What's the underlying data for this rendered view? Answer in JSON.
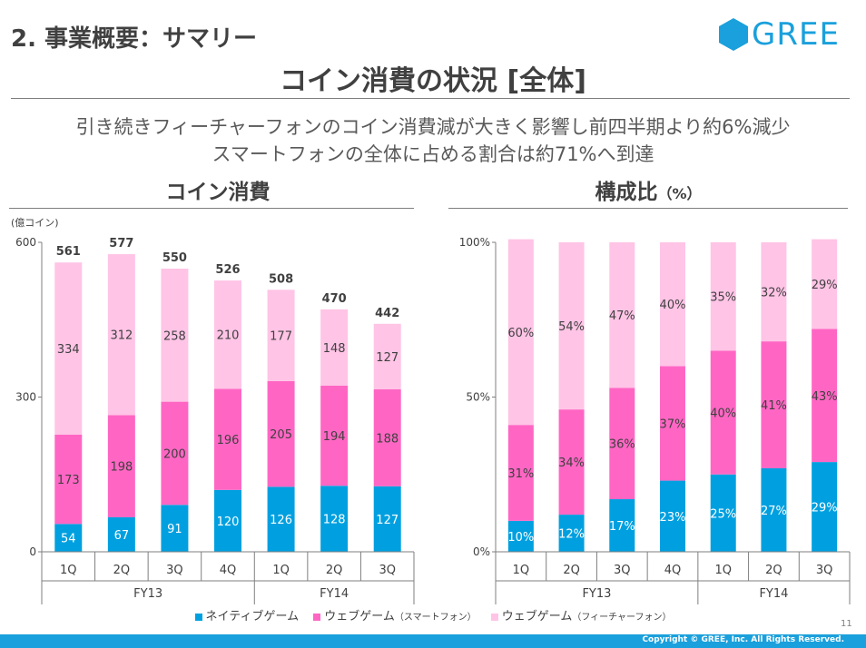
{
  "header": {
    "section_title": "2. 事業概要：サマリー",
    "main_title": "コイン消費の状況 [全体]",
    "logo_text": "GREE"
  },
  "subtitle": {
    "line1": "引き続きフィーチャーフォンのコイン消費減が大きく影響し前四半期より約6%減少",
    "line2": "スマートフォンの全体に占める割合は約71%へ到達"
  },
  "legend": {
    "items": [
      {
        "label": "ネイティブゲーム",
        "note": ""
      },
      {
        "label": "ウェブゲーム",
        "note": "（スマートフォン）"
      },
      {
        "label": "ウェブゲーム",
        "note": "（フィーチャーフォン）"
      }
    ]
  },
  "colors": {
    "native": "#00a0e0",
    "web_smartphone": "#ff66c4",
    "web_featurephone": "#ffc4e6",
    "brand": "#1aa0dc"
  },
  "chart_data": [
    {
      "type": "bar",
      "stacked": true,
      "title": "コイン消費",
      "ylabel": "(億コイン)",
      "ylim": [
        0,
        600
      ],
      "yticks": [
        "0",
        "300",
        "600"
      ],
      "categories": [
        "1Q",
        "2Q",
        "3Q",
        "4Q",
        "1Q",
        "2Q",
        "3Q"
      ],
      "groups": [
        {
          "label": "FY13",
          "count": 4
        },
        {
          "label": "FY14",
          "count": 3
        }
      ],
      "series": [
        {
          "name": "ネイティブゲーム",
          "values": [
            54,
            67,
            91,
            120,
            126,
            128,
            127
          ]
        },
        {
          "name": "ウェブゲーム（スマートフォン）",
          "values": [
            173,
            198,
            200,
            196,
            205,
            194,
            188
          ]
        },
        {
          "name": "ウェブゲーム（フィーチャーフォン）",
          "values": [
            334,
            312,
            258,
            210,
            177,
            148,
            127
          ]
        }
      ],
      "totals": [
        561,
        577,
        550,
        526,
        508,
        470,
        442
      ]
    },
    {
      "type": "bar",
      "stacked": true,
      "title": "構成比",
      "title_unit": "（%）",
      "ylim": [
        0,
        100
      ],
      "yticks": [
        "0%",
        "50%",
        "100%"
      ],
      "categories": [
        "1Q",
        "2Q",
        "3Q",
        "4Q",
        "1Q",
        "2Q",
        "3Q"
      ],
      "groups": [
        {
          "label": "FY13",
          "count": 4
        },
        {
          "label": "FY14",
          "count": 3
        }
      ],
      "series": [
        {
          "name": "ネイティブゲーム",
          "values": [
            10,
            12,
            17,
            23,
            25,
            27,
            29
          ]
        },
        {
          "name": "ウェブゲーム（スマートフォン）",
          "values": [
            31,
            34,
            36,
            37,
            40,
            41,
            43
          ]
        },
        {
          "name": "ウェブゲーム（フィーチャーフォン）",
          "values": [
            60,
            54,
            47,
            40,
            35,
            32,
            29
          ]
        }
      ]
    }
  ],
  "footer": {
    "page_number": "11",
    "copyright": "Copyright © GREE, Inc. All Rights Reserved."
  }
}
